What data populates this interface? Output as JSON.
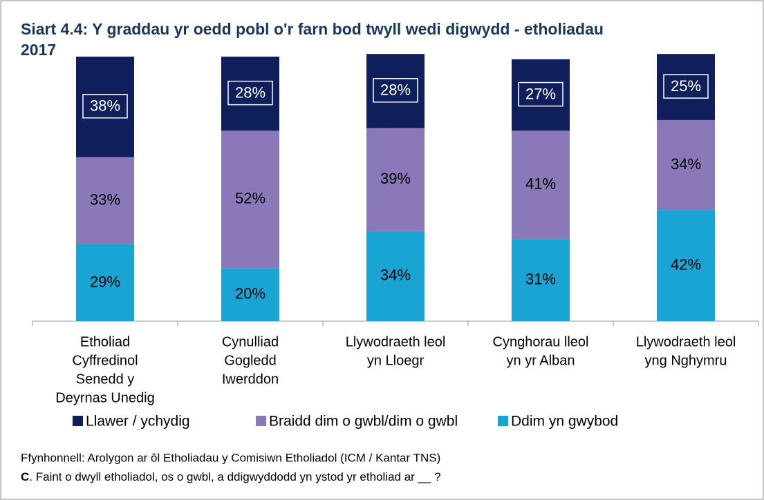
{
  "chart_data": {
    "type": "stacked_bar",
    "title_lines": [
      "Siart 4.4: Y graddau yr oedd pobl o'r farn bod twyll wedi digwydd - etholiadau",
      "2017"
    ],
    "categories": [
      [
        "Etholiad",
        "Cyffredinol",
        "Senedd y",
        "Deyrnas Unedig"
      ],
      [
        "Cynulliad",
        "Gogledd",
        "Iwerddon"
      ],
      [
        "Llywodraeth leol",
        "yn Lloegr"
      ],
      [
        "Cynghorau lleol",
        "yn yr Alban"
      ],
      [
        "Llywodraeth leol",
        "yng Nghymru"
      ]
    ],
    "series": [
      {
        "name": "Llawer / ychydig",
        "color": "#0f1f5c",
        "values": [
          38,
          28,
          28,
          27,
          25
        ],
        "value_labels": [
          "38%",
          "28%",
          "28%",
          "27%",
          "25%"
        ],
        "label_color": "#ffffff",
        "boxed": true
      },
      {
        "name": "Braidd dim o gwbl/dim o gwbl",
        "color": "#8a78b8",
        "values": [
          33,
          52,
          39,
          41,
          34
        ],
        "value_labels": [
          "33%",
          "52%",
          "39%",
          "41%",
          "34%"
        ],
        "label_color": "#000000"
      },
      {
        "name": "Ddim yn gwybod",
        "color": "#19a4d4",
        "values": [
          29,
          20,
          34,
          31,
          42
        ],
        "value_labels": [
          "29%",
          "20%",
          "34%",
          "31%",
          "42%"
        ],
        "label_color": "#000000"
      }
    ],
    "source": "Ffynhonnell:  Arolygon ar ôl Etholiadau y Comisiwn Etholiadol (ICM / Kantar TNS)",
    "question_label": "C",
    "question": ".  Faint o dwyll  etholiadol,  os o gwbl,  a ddigwyddodd  yn ystod yr etholiad ar __ ?"
  }
}
